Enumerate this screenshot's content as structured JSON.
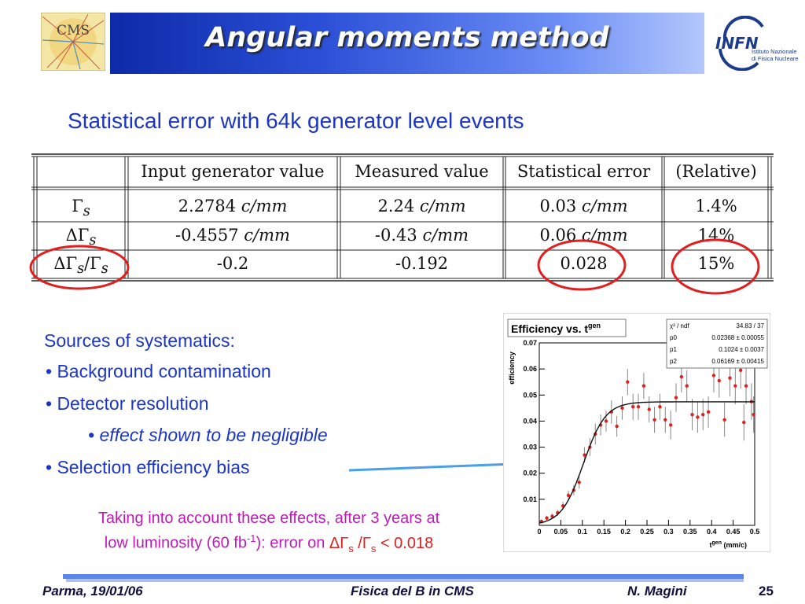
{
  "header": {
    "title": "Angular moments method",
    "left_logo": "cms-logo",
    "right_logo": "infn-logo",
    "left_logo_text": "CMS",
    "right_logo_text": "INFN",
    "right_logo_subtext": [
      "Istituto Nazionale",
      "di Fisica Nucleare"
    ]
  },
  "subtitle": "Statistical error with 64k generator level events",
  "table": {
    "headers": [
      "",
      "Input generator value",
      "Measured value",
      "Statistical error",
      "(Relative)"
    ],
    "rows": [
      {
        "param": "Γ",
        "param_sub": "s",
        "input": "2.2784",
        "input_unit": "c/mm",
        "measured": "2.24",
        "measured_unit": "c/mm",
        "stat": "0.03",
        "stat_unit": "c/mm",
        "rel": "1.4%"
      },
      {
        "param": "ΔΓ",
        "param_sub": "s",
        "input": "-0.4557",
        "input_unit": "c/mm",
        "measured": "-0.43",
        "measured_unit": "c/mm",
        "stat": "0.06",
        "stat_unit": "c/mm",
        "rel": "14%"
      },
      {
        "param": "ΔΓ",
        "param_sub": "s",
        "param_div": "/Γ",
        "param_div_sub": "s",
        "input": "-0.2",
        "measured": "-0.192",
        "stat": "0.028",
        "rel": "15%"
      }
    ],
    "highlight_color": "#e02020"
  },
  "systematics": {
    "heading": "Sources of systematics:",
    "items": [
      "• Background contamination",
      "• Detector resolution",
      "• effect shown to be negligible",
      "• Selection efficiency bias"
    ]
  },
  "note": {
    "line1": "Taking into account these effects, after 3 years at",
    "line2_a": "low luminosity (60 fb",
    "line2_sup": "-1",
    "line2_b": "): error on ",
    "line2_red": "ΔΓ",
    "line2_red_sub1": "s",
    "line2_red_mid": " /Γ",
    "line2_red_sub2": "s",
    "line2_red_end": " < 0.018"
  },
  "footer": {
    "left": "Parma, 19/01/06",
    "center": "Fisica del B in CMS",
    "right": "N. Magini",
    "page": "25"
  },
  "chart_data": {
    "type": "scatter",
    "title": "Efficiency vs. t",
    "title_sup": "gen",
    "ylabel": "efficiency",
    "xlabel": "t",
    "xlabel_sup": "gen",
    "xlabel_unit": " (mm/c)",
    "xlim": [
      0,
      0.5
    ],
    "ylim": [
      0,
      0.07
    ],
    "xticks": [
      "0",
      "0.05",
      "0.1",
      "0.15",
      "0.2",
      "0.25",
      "0.3",
      "0.35",
      "0.4",
      "0.45",
      "0.5"
    ],
    "yticks": [
      "0.01",
      "0.02",
      "0.03",
      "0.04",
      "0.05",
      "0.06",
      "0.07"
    ],
    "stats": {
      "chi2_label": "χ² / ndf",
      "chi2_value": "34.83 / 37",
      "params": [
        {
          "name": "p0",
          "value": "0.02368 ± 0.00055"
        },
        {
          "name": "p1",
          "value": "0.1024 ± 0.0037"
        },
        {
          "name": "p2",
          "value": "0.06169 ± 0.00415"
        }
      ]
    },
    "fit": {
      "plateau": 0.0474,
      "x0": 0.1024,
      "width": 0.0617
    },
    "point_color": "#e02020",
    "points": [
      {
        "x": 0.005,
        "y": 0.0015,
        "e": 0.0008
      },
      {
        "x": 0.0175,
        "y": 0.0028,
        "e": 0.0009
      },
      {
        "x": 0.03,
        "y": 0.0035,
        "e": 0.001
      },
      {
        "x": 0.0425,
        "y": 0.0048,
        "e": 0.0012
      },
      {
        "x": 0.055,
        "y": 0.0075,
        "e": 0.0015
      },
      {
        "x": 0.0675,
        "y": 0.0115,
        "e": 0.0018
      },
      {
        "x": 0.08,
        "y": 0.0135,
        "e": 0.002
      },
      {
        "x": 0.0925,
        "y": 0.0165,
        "e": 0.0025
      },
      {
        "x": 0.105,
        "y": 0.027,
        "e": 0.003
      },
      {
        "x": 0.1175,
        "y": 0.03,
        "e": 0.0035
      },
      {
        "x": 0.13,
        "y": 0.035,
        "e": 0.004
      },
      {
        "x": 0.1425,
        "y": 0.0385,
        "e": 0.004
      },
      {
        "x": 0.155,
        "y": 0.04,
        "e": 0.004
      },
      {
        "x": 0.1675,
        "y": 0.0435,
        "e": 0.0045
      },
      {
        "x": 0.18,
        "y": 0.038,
        "e": 0.004
      },
      {
        "x": 0.1925,
        "y": 0.045,
        "e": 0.0045
      },
      {
        "x": 0.205,
        "y": 0.055,
        "e": 0.005
      },
      {
        "x": 0.2175,
        "y": 0.0455,
        "e": 0.005
      },
      {
        "x": 0.23,
        "y": 0.0455,
        "e": 0.005
      },
      {
        "x": 0.2425,
        "y": 0.0535,
        "e": 0.005
      },
      {
        "x": 0.255,
        "y": 0.0445,
        "e": 0.005
      },
      {
        "x": 0.2675,
        "y": 0.0405,
        "e": 0.005
      },
      {
        "x": 0.28,
        "y": 0.0455,
        "e": 0.005
      },
      {
        "x": 0.2925,
        "y": 0.0405,
        "e": 0.005
      },
      {
        "x": 0.305,
        "y": 0.0385,
        "e": 0.0055
      },
      {
        "x": 0.3175,
        "y": 0.049,
        "e": 0.0055
      },
      {
        "x": 0.33,
        "y": 0.057,
        "e": 0.006
      },
      {
        "x": 0.3425,
        "y": 0.0535,
        "e": 0.006
      },
      {
        "x": 0.355,
        "y": 0.0425,
        "e": 0.006
      },
      {
        "x": 0.3675,
        "y": 0.0415,
        "e": 0.006
      },
      {
        "x": 0.38,
        "y": 0.0425,
        "e": 0.006
      },
      {
        "x": 0.3925,
        "y": 0.0435,
        "e": 0.006
      },
      {
        "x": 0.405,
        "y": 0.0575,
        "e": 0.0065
      },
      {
        "x": 0.4175,
        "y": 0.0555,
        "e": 0.0065
      },
      {
        "x": 0.43,
        "y": 0.0405,
        "e": 0.0065
      },
      {
        "x": 0.4425,
        "y": 0.0565,
        "e": 0.007
      },
      {
        "x": 0.455,
        "y": 0.0535,
        "e": 0.007
      },
      {
        "x": 0.4675,
        "y": 0.0595,
        "e": 0.007
      },
      {
        "x": 0.48,
        "y": 0.0535,
        "e": 0.007
      },
      {
        "x": 0.4925,
        "y": 0.0475,
        "e": 0.007
      },
      {
        "x": 0.475,
        "y": 0.0395,
        "e": 0.007
      },
      {
        "x": 0.4975,
        "y": 0.0425,
        "e": 0.007
      }
    ]
  },
  "arrow": {
    "color": "#4aa0e8",
    "target": "chart"
  }
}
